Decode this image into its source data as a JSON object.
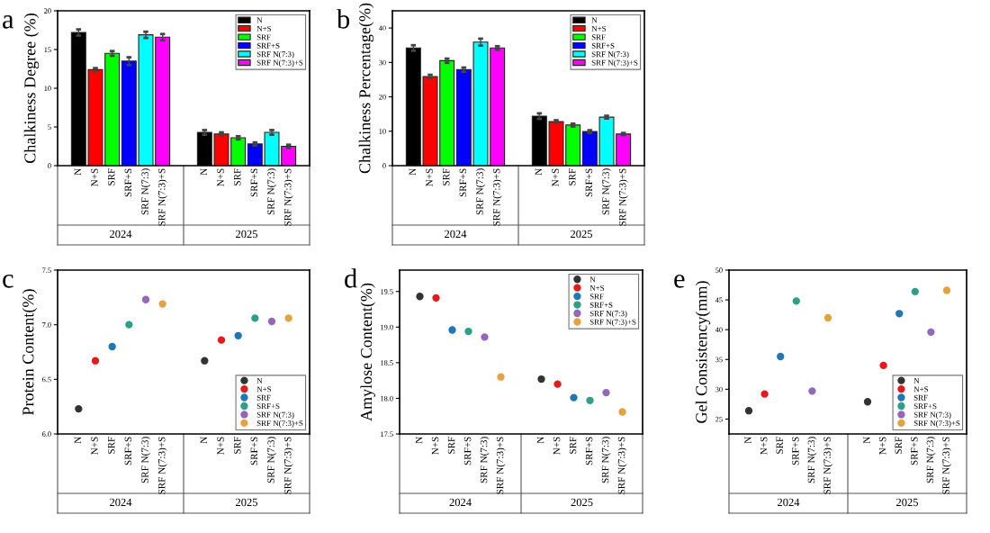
{
  "chart_data": [
    {
      "type": "bar",
      "title": "a",
      "ylabel": "Chalkiness Degree (%)",
      "categories": [
        "2024",
        "2025"
      ],
      "ylim": [
        0,
        20
      ],
      "yticks": [
        0,
        5,
        10,
        15,
        20
      ],
      "legend": "top right",
      "grid": false,
      "series": [
        {
          "name": "N",
          "color": "#000000",
          "values": [
            17.2,
            4.3
          ],
          "errors": [
            0.4,
            0.3
          ]
        },
        {
          "name": "N+S",
          "color": "#ff0000",
          "values": [
            12.4,
            4.1
          ],
          "errors": [
            0.2,
            0.2
          ]
        },
        {
          "name": "SRF",
          "color": "#00ff00",
          "values": [
            14.5,
            3.6
          ],
          "errors": [
            0.3,
            0.2
          ]
        },
        {
          "name": "SRF+S",
          "color": "#0000ff",
          "values": [
            13.5,
            2.8
          ],
          "errors": [
            0.5,
            0.2
          ]
        },
        {
          "name": "SRF N(7:3)",
          "color": "#00ffff",
          "values": [
            16.9,
            4.3
          ],
          "errors": [
            0.4,
            0.3
          ]
        },
        {
          "name": "SRF N(7:3)+S",
          "color": "#ff00ff",
          "values": [
            16.6,
            2.5
          ],
          "errors": [
            0.4,
            0.2
          ]
        }
      ]
    },
    {
      "type": "bar",
      "title": "b",
      "ylabel": "Chalkiness Percentage(%)",
      "categories": [
        "2024",
        "2025"
      ],
      "ylim": [
        0,
        45
      ],
      "yticks": [
        0,
        10,
        20,
        30,
        40
      ],
      "legend": "top right",
      "grid": false,
      "series": [
        {
          "name": "N",
          "color": "#000000",
          "values": [
            34.2,
            14.4
          ],
          "errors": [
            0.8,
            0.8
          ]
        },
        {
          "name": "N+S",
          "color": "#ff0000",
          "values": [
            25.9,
            12.8
          ],
          "errors": [
            0.5,
            0.4
          ]
        },
        {
          "name": "SRF",
          "color": "#00ff00",
          "values": [
            30.5,
            11.8
          ],
          "errors": [
            0.6,
            0.4
          ]
        },
        {
          "name": "SRF+S",
          "color": "#0000ff",
          "values": [
            27.9,
            9.9
          ],
          "errors": [
            0.6,
            0.4
          ]
        },
        {
          "name": "SRF N(7:3)",
          "color": "#00ffff",
          "values": [
            35.9,
            14.1
          ],
          "errors": [
            1.0,
            0.4
          ]
        },
        {
          "name": "SRF N(7:3)+S",
          "color": "#ff00ff",
          "values": [
            34.2,
            9.2
          ],
          "errors": [
            0.5,
            0.3
          ]
        }
      ]
    },
    {
      "type": "scatter",
      "title": "c",
      "ylabel": "Protein Content(%)",
      "categories": [
        "2024",
        "2025"
      ],
      "ylim": [
        6.0,
        7.5
      ],
      "yticks": [
        {
          "value": 6.0,
          "label": "6.0"
        },
        6.5,
        {
          "value": 7.0,
          "label": "7.0"
        },
        7.5
      ],
      "legend": "bottom right",
      "marker": "circle",
      "grid": false,
      "series": [
        {
          "name": "N",
          "color": "#333333",
          "values": [
            6.23,
            6.67
          ]
        },
        {
          "name": "N+S",
          "color": "#e41a1c",
          "values": [
            6.67,
            6.86
          ]
        },
        {
          "name": "SRF",
          "color": "#1f78b4",
          "values": [
            6.8,
            6.9
          ]
        },
        {
          "name": "SRF+S",
          "color": "#2ca089",
          "values": [
            7.0,
            7.06
          ]
        },
        {
          "name": "SRF N(7:3)",
          "color": "#9467bd",
          "values": [
            7.23,
            7.03
          ]
        },
        {
          "name": "SRF N(7:3)+S",
          "color": "#e6a23c",
          "values": [
            7.19,
            7.06
          ]
        }
      ]
    },
    {
      "type": "scatter",
      "title": "d",
      "ylabel": "Amylose Content(%)",
      "categories": [
        "2024",
        "2025"
      ],
      "ylim": [
        17.5,
        19.8
      ],
      "yticks": [
        17.5,
        {
          "value": 18.0,
          "label": "18.0"
        },
        18.5,
        {
          "value": 19.0,
          "label": "19.0"
        },
        19.5
      ],
      "legend": "top right",
      "marker": "circle",
      "grid": false,
      "series": [
        {
          "name": "N",
          "color": "#333333",
          "values": [
            19.43,
            18.27
          ]
        },
        {
          "name": "N+S",
          "color": "#e41a1c",
          "values": [
            19.41,
            18.2
          ]
        },
        {
          "name": "SRF",
          "color": "#1f78b4",
          "values": [
            18.96,
            18.01
          ]
        },
        {
          "name": "SRF+S",
          "color": "#2ca089",
          "values": [
            18.94,
            17.97
          ]
        },
        {
          "name": "SRF N(7:3)",
          "color": "#9467bd",
          "values": [
            18.86,
            18.08
          ]
        },
        {
          "name": "SRF N(7:3)+S",
          "color": "#e6a23c",
          "values": [
            18.3,
            17.81
          ]
        }
      ]
    },
    {
      "type": "scatter",
      "title": "e",
      "ylabel": "Gel Consistency(mm)",
      "categories": [
        "2024",
        "2025"
      ],
      "ylim": [
        22.5,
        50
      ],
      "yticks": [
        25,
        30,
        35,
        40,
        45,
        50
      ],
      "legend": "bottom right",
      "marker": "circle",
      "grid": false,
      "series": [
        {
          "name": "N",
          "color": "#333333",
          "values": [
            26.4,
            27.9
          ]
        },
        {
          "name": "N+S",
          "color": "#e41a1c",
          "values": [
            29.2,
            34.0
          ]
        },
        {
          "name": "SRF",
          "color": "#1f78b4",
          "values": [
            35.5,
            42.7
          ]
        },
        {
          "name": "SRF+S",
          "color": "#2ca089",
          "values": [
            44.8,
            46.4
          ]
        },
        {
          "name": "SRF N(7:3)",
          "color": "#9467bd",
          "values": [
            29.7,
            39.6
          ]
        },
        {
          "name": "SRF N(7:3)+S",
          "color": "#e6a23c",
          "values": [
            42.0,
            46.6
          ]
        }
      ]
    }
  ]
}
